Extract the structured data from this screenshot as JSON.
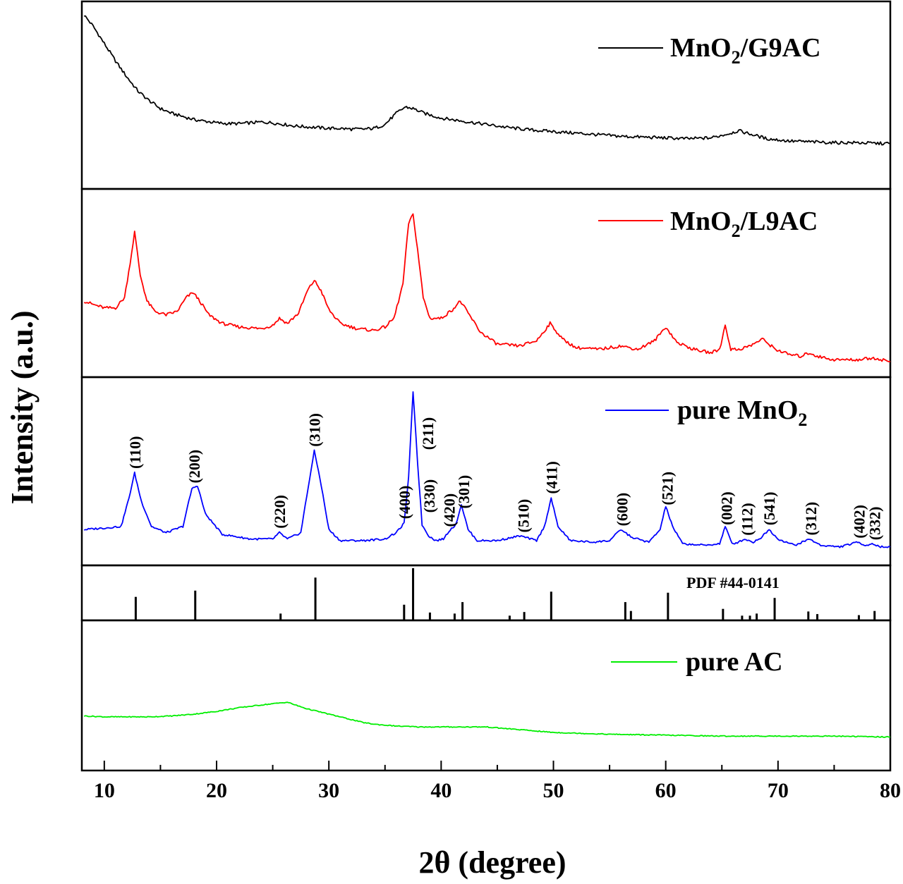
{
  "chart_data": {
    "type": "line",
    "xlabel": "2θ (degree)",
    "ylabel": "Intensity (a.u.)",
    "xlim": [
      8,
      80
    ],
    "xticks": [
      "10",
      "20",
      "30",
      "40",
      "50",
      "60",
      "70",
      "80"
    ],
    "series": [
      {
        "name": "MnO2/G9AC",
        "legend_main": "MnO",
        "legend_sub": "2",
        "legend_tail": "/G9AC",
        "color": "#000000",
        "x": [
          8.2,
          9,
          10,
          11,
          12,
          13,
          14,
          15,
          16,
          17,
          18,
          19,
          20,
          21,
          22,
          23,
          24,
          25,
          26,
          27,
          28,
          29,
          30,
          31,
          32,
          33,
          34,
          35,
          36,
          36.8,
          37.5,
          38.5,
          40,
          42,
          44,
          46,
          48,
          50,
          52,
          54,
          56,
          58,
          60,
          62,
          64,
          65.5,
          66.5,
          67.5,
          69,
          71,
          73,
          75,
          77,
          79,
          80
        ],
        "y": [
          0.95,
          0.88,
          0.77,
          0.66,
          0.56,
          0.47,
          0.41,
          0.36,
          0.33,
          0.31,
          0.29,
          0.28,
          0.27,
          0.265,
          0.265,
          0.27,
          0.275,
          0.27,
          0.26,
          0.25,
          0.245,
          0.24,
          0.235,
          0.235,
          0.23,
          0.23,
          0.235,
          0.26,
          0.33,
          0.37,
          0.36,
          0.33,
          0.3,
          0.28,
          0.26,
          0.24,
          0.225,
          0.215,
          0.205,
          0.195,
          0.185,
          0.18,
          0.175,
          0.17,
          0.175,
          0.2,
          0.22,
          0.2,
          0.17,
          0.155,
          0.15,
          0.145,
          0.145,
          0.14,
          0.14
        ]
      },
      {
        "name": "MnO2/L9AC",
        "legend_main": "MnO",
        "legend_sub": "2",
        "legend_tail": "/L9AC",
        "color": "#ff0000",
        "x": [
          8.2,
          9,
          10,
          11,
          11.8,
          12.3,
          12.7,
          13.2,
          13.8,
          14.5,
          15.5,
          16.5,
          17.3,
          17.9,
          18.5,
          19.3,
          20.5,
          22,
          24,
          25,
          25.6,
          26.3,
          27.3,
          28.1,
          28.7,
          29.3,
          30,
          31,
          32.5,
          34,
          35,
          35.8,
          36.6,
          37.1,
          37.5,
          37.9,
          38.4,
          39,
          40,
          41,
          41.7,
          42.4,
          43.5,
          45,
          47,
          48.5,
          49.7,
          50.8,
          52,
          54,
          56,
          57.5,
          59,
          60,
          61,
          62.5,
          64,
          64.8,
          65.3,
          65.8,
          66.5,
          67.5,
          68.6,
          69.8,
          71,
          72,
          72.8,
          73.5,
          75,
          77,
          78.5,
          80
        ],
        "y": [
          0.4,
          0.38,
          0.36,
          0.36,
          0.42,
          0.62,
          0.8,
          0.55,
          0.4,
          0.34,
          0.32,
          0.34,
          0.42,
          0.45,
          0.4,
          0.32,
          0.27,
          0.25,
          0.24,
          0.26,
          0.3,
          0.27,
          0.33,
          0.46,
          0.52,
          0.46,
          0.35,
          0.27,
          0.24,
          0.23,
          0.25,
          0.3,
          0.5,
          0.85,
          0.9,
          0.7,
          0.42,
          0.3,
          0.3,
          0.35,
          0.4,
          0.33,
          0.22,
          0.15,
          0.14,
          0.17,
          0.27,
          0.18,
          0.13,
          0.12,
          0.14,
          0.12,
          0.17,
          0.25,
          0.16,
          0.12,
          0.1,
          0.12,
          0.26,
          0.12,
          0.12,
          0.14,
          0.18,
          0.12,
          0.09,
          0.08,
          0.1,
          0.08,
          0.06,
          0.06,
          0.07,
          0.05
        ]
      },
      {
        "name": "pure MnO2",
        "legend_main": "pure MnO",
        "legend_sub": "2",
        "legend_tail": "",
        "color": "#0000ff",
        "x": [
          8.2,
          10,
          11.5,
          12.2,
          12.7,
          13.3,
          14.2,
          15.5,
          17,
          17.8,
          18.3,
          19,
          20.5,
          23,
          25,
          25.6,
          26.3,
          27.5,
          28.3,
          28.7,
          29.2,
          30,
          31,
          33,
          35,
          36,
          36.7,
          37.1,
          37.5,
          37.9,
          38.3,
          38.9,
          39.5,
          40.2,
          40.8,
          41.3,
          41.8,
          42.4,
          43.2,
          45,
          47,
          48.5,
          49.2,
          49.8,
          50.4,
          51.5,
          53.5,
          55,
          56,
          57,
          58.5,
          59.5,
          60,
          60.6,
          61.5,
          63.5,
          64.8,
          65.3,
          65.9,
          66.5,
          67,
          67.8,
          68.5,
          69.2,
          70,
          71.5,
          72.8,
          73.8,
          75.5,
          77.1,
          77.8,
          78.5,
          79,
          80
        ],
        "y": [
          0.12,
          0.13,
          0.14,
          0.32,
          0.48,
          0.3,
          0.14,
          0.1,
          0.14,
          0.38,
          0.4,
          0.22,
          0.09,
          0.06,
          0.06,
          0.1,
          0.06,
          0.1,
          0.45,
          0.62,
          0.45,
          0.12,
          0.05,
          0.05,
          0.06,
          0.1,
          0.16,
          0.45,
          1.0,
          0.55,
          0.15,
          0.08,
          0.05,
          0.06,
          0.12,
          0.15,
          0.28,
          0.12,
          0.05,
          0.05,
          0.08,
          0.05,
          0.14,
          0.32,
          0.14,
          0.05,
          0.04,
          0.05,
          0.12,
          0.07,
          0.04,
          0.12,
          0.27,
          0.14,
          0.03,
          0.02,
          0.03,
          0.14,
          0.03,
          0.04,
          0.06,
          0.04,
          0.07,
          0.12,
          0.06,
          0.02,
          0.06,
          0.02,
          0.01,
          0.04,
          0.02,
          0.03,
          0.01,
          0.01
        ]
      },
      {
        "name": "pure AC",
        "legend_main": "pure AC",
        "legend_sub": "",
        "legend_tail": "",
        "color": "#00ee00",
        "x": [
          8.2,
          10,
          12,
          14,
          16,
          18,
          20,
          22,
          24,
          25.5,
          26.3,
          27,
          28,
          29,
          30,
          31,
          32,
          33,
          34,
          36,
          38,
          40,
          42,
          44,
          46,
          48,
          50,
          55,
          60,
          65,
          70,
          75,
          80
        ],
        "y": [
          0.38,
          0.37,
          0.37,
          0.37,
          0.38,
          0.4,
          0.43,
          0.47,
          0.5,
          0.52,
          0.53,
          0.5,
          0.46,
          0.43,
          0.4,
          0.37,
          0.34,
          0.31,
          0.29,
          0.27,
          0.26,
          0.26,
          0.26,
          0.26,
          0.24,
          0.22,
          0.2,
          0.18,
          0.17,
          0.16,
          0.16,
          0.16,
          0.15
        ]
      }
    ],
    "hkl_labels": [
      {
        "x": 12.7,
        "label": "(110)"
      },
      {
        "x": 18.0,
        "label": "(200)"
      },
      {
        "x": 25.6,
        "label": "(220)"
      },
      {
        "x": 28.7,
        "label": "(310)"
      },
      {
        "x": 36.7,
        "label": "(400)"
      },
      {
        "x": 38.8,
        "label": "(211)"
      },
      {
        "x": 38.9,
        "label": "(330)"
      },
      {
        "x": 40.7,
        "label": "(420)"
      },
      {
        "x": 42.0,
        "label": "(301)"
      },
      {
        "x": 47.3,
        "label": "(510)"
      },
      {
        "x": 49.8,
        "label": "(411)"
      },
      {
        "x": 56.1,
        "label": "(600)"
      },
      {
        "x": 60.1,
        "label": "(521)"
      },
      {
        "x": 65.4,
        "label": "(002)"
      },
      {
        "x": 67.2,
        "label": "(112)"
      },
      {
        "x": 69.2,
        "label": "(541)"
      },
      {
        "x": 72.9,
        "label": "(312)"
      },
      {
        "x": 77.2,
        "label": "(402)"
      },
      {
        "x": 78.6,
        "label": "(332)"
      }
    ],
    "reference": {
      "label": "PDF #44-0141",
      "lines": [
        {
          "x": 12.8,
          "h": 0.45
        },
        {
          "x": 18.1,
          "h": 0.57
        },
        {
          "x": 25.7,
          "h": 0.13
        },
        {
          "x": 28.8,
          "h": 0.82
        },
        {
          "x": 36.7,
          "h": 0.3
        },
        {
          "x": 37.5,
          "h": 1.0
        },
        {
          "x": 39.0,
          "h": 0.15
        },
        {
          "x": 41.2,
          "h": 0.13
        },
        {
          "x": 41.9,
          "h": 0.35
        },
        {
          "x": 46.1,
          "h": 0.09
        },
        {
          "x": 47.4,
          "h": 0.16
        },
        {
          "x": 49.8,
          "h": 0.55
        },
        {
          "x": 56.4,
          "h": 0.35
        },
        {
          "x": 56.9,
          "h": 0.18
        },
        {
          "x": 60.2,
          "h": 0.53
        },
        {
          "x": 65.1,
          "h": 0.22
        },
        {
          "x": 66.8,
          "h": 0.09
        },
        {
          "x": 67.5,
          "h": 0.09
        },
        {
          "x": 68.1,
          "h": 0.13
        },
        {
          "x": 69.7,
          "h": 0.43
        },
        {
          "x": 72.7,
          "h": 0.17
        },
        {
          "x": 73.5,
          "h": 0.12
        },
        {
          "x": 77.2,
          "h": 0.1
        },
        {
          "x": 78.6,
          "h": 0.18
        }
      ]
    }
  }
}
